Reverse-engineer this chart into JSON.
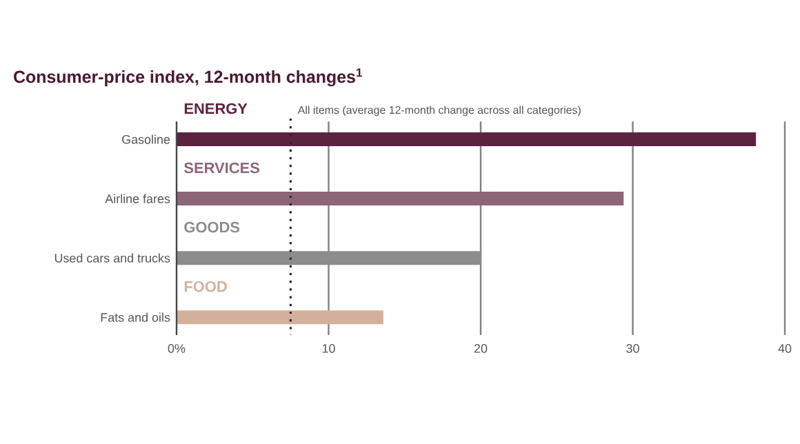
{
  "chart_data": {
    "type": "bar",
    "orientation": "horizontal",
    "title": "Consumer-price index, 12-month changes$^{1}$",
    "categories": [
      "Gasoline",
      "Airline fares",
      "Used cars and trucks",
      "Fats and oils"
    ],
    "values": [
      38.1,
      29.4,
      20.0,
      13.6
    ],
    "colors": [
      "#5c2341",
      "#8e6577",
      "#8c8c8c",
      "#d4b09c"
    ],
    "xlim": [
      0,
      40
    ],
    "xticks": [
      {
        "value": 0,
        "label": "0%"
      },
      10,
      20,
      30,
      40
    ],
    "grid": "x",
    "ref_lines": [
      {
        "axis": "x",
        "value": 7.5,
        "label": "All items (average 12-month change across all categories)",
        "line_style": "dotted"
      }
    ],
    "annotations": [
      "ENERGY",
      "SERVICES",
      "GOODS",
      "FOOD"
    ]
  }
}
